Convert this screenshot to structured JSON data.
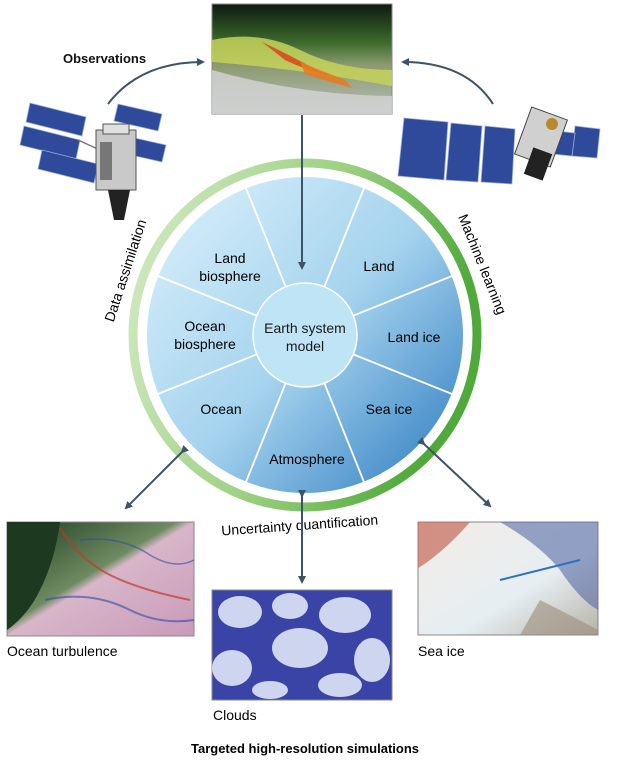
{
  "observations_label": "Observations",
  "core": {
    "line1": "Earth system",
    "line2": "model"
  },
  "segments": {
    "land_biosphere": [
      "Land",
      "biosphere"
    ],
    "land": "Land",
    "land_ice": "Land ice",
    "sea_ice": "Sea ice",
    "atmosphere": "Atmosphere",
    "ocean": "Ocean",
    "ocean_biosphere": [
      "Ocean",
      "biosphere"
    ]
  },
  "ring_labels": {
    "data_assimilation": "Data assimilation",
    "machine_learning": "Machine learning",
    "uncertainty_quantification": "Uncertainty quantification"
  },
  "captions": {
    "ocean_turbulence": "Ocean turbulence",
    "clouds": "Clouds",
    "sea_ice": "Sea ice",
    "footer": "Targeted high-resolution simulations"
  },
  "colors": {
    "ring_light": "#c9e6b8",
    "ring_dark": "#5cb046",
    "wheel_light": "#c4e6f7",
    "wheel_dark": "#3f8fcb",
    "core": "#bfe4f5",
    "arrow": "#3d5466",
    "solar_panel": "#2f4a9b"
  }
}
